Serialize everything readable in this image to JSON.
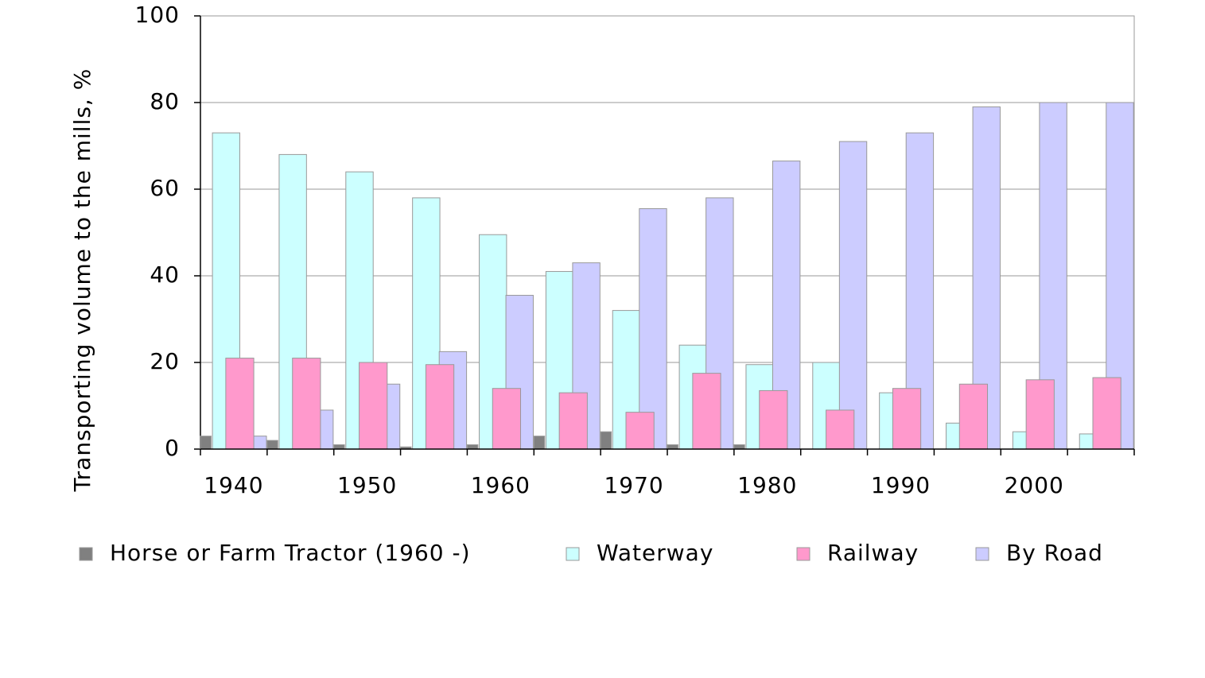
{
  "chart_data": {
    "type": "bar",
    "ylabel": "Transporting volume to the mills, %",
    "categories": [
      "1940",
      null,
      "1950",
      null,
      "1960",
      null,
      "1970",
      null,
      "1980",
      null,
      "1990",
      null,
      "2000",
      null
    ],
    "series": [
      {
        "name": "Horse or Farm Tractor (1960 -)",
        "color": "#808080",
        "values": [
          3,
          2,
          1,
          0.5,
          1,
          3,
          4,
          1,
          1,
          0,
          0,
          0,
          0,
          0
        ]
      },
      {
        "name": "Waterway",
        "color": "#ccffff",
        "values": [
          73,
          68,
          64,
          58,
          49.5,
          41,
          32,
          24,
          19.5,
          20,
          13,
          6,
          4,
          3.5
        ]
      },
      {
        "name": "By Road",
        "color": "#ccccff",
        "values": [
          3,
          9,
          15,
          22.5,
          35.5,
          43,
          55.5,
          58,
          66.5,
          71,
          73,
          79,
          80,
          80
        ]
      },
      {
        "name": "Railway",
        "color": "#ff99cc",
        "values": [
          21,
          21,
          20,
          19.5,
          14,
          13,
          8.5,
          17.5,
          13.5,
          9,
          14,
          15,
          16,
          16.5
        ]
      }
    ],
    "ylim": [
      0,
      100
    ],
    "yticks": [
      0,
      20,
      40,
      60,
      80,
      100
    ],
    "grid": true,
    "legend": "bottom"
  }
}
